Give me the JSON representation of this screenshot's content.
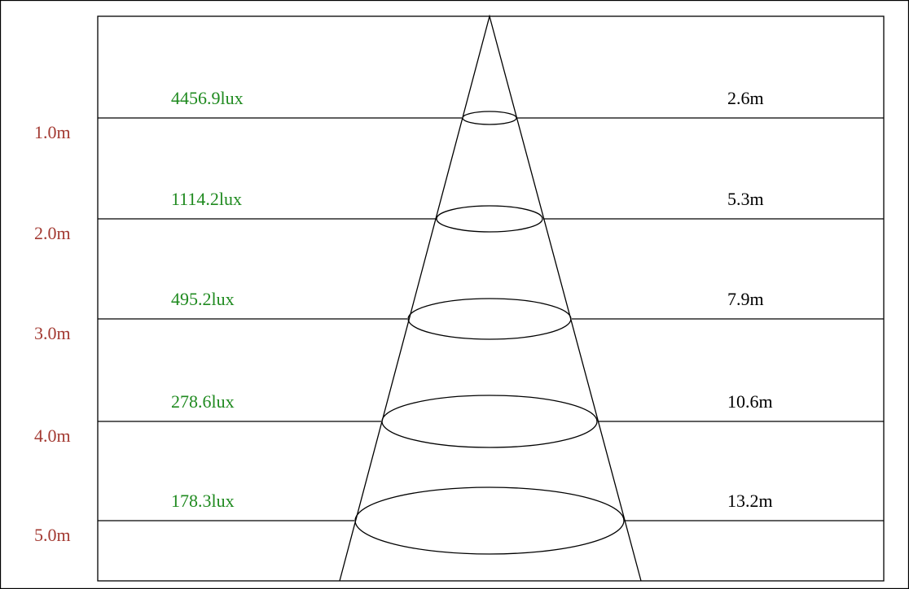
{
  "levels": [
    {
      "distance": "1.0m",
      "illuminance": "4456.9lux",
      "diameter": "2.6m"
    },
    {
      "distance": "2.0m",
      "illuminance": "1114.2lux",
      "diameter": "5.3m"
    },
    {
      "distance": "3.0m",
      "illuminance": "495.2lux",
      "diameter": "7.9m"
    },
    {
      "distance": "4.0m",
      "illuminance": "278.6lux",
      "diameter": "10.6m"
    },
    {
      "distance": "5.0m",
      "illuminance": "178.3lux",
      "diameter": "13.2m"
    }
  ]
}
